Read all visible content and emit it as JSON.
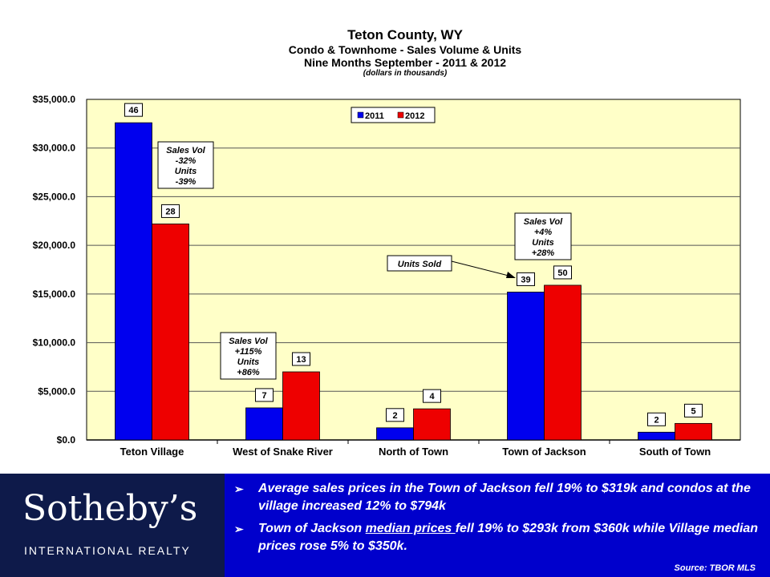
{
  "header": {
    "title": "Teton County, WY",
    "subtitle": "Condo & Townhome - Sales Volume & Units",
    "subtitle2": "Nine Months September  - 2011 & 2012",
    "note": "(dollars in thousands)"
  },
  "chart_data": {
    "type": "bar",
    "categories": [
      "Teton Village",
      "West of Snake River",
      "North of Town",
      "Town of Jackson",
      "South of Town"
    ],
    "series": [
      {
        "name": "2011",
        "color": "#0000ee",
        "values": [
          32600,
          3300,
          1250,
          15200,
          800
        ],
        "labels": [
          "46",
          "7",
          "2",
          "39",
          "2"
        ]
      },
      {
        "name": "2012",
        "color": "#ee0000",
        "values": [
          22200,
          7000,
          3200,
          15900,
          1700
        ],
        "labels": [
          "28",
          "13",
          "4",
          "50",
          "5"
        ]
      }
    ],
    "ylim": [
      0,
      35000
    ],
    "yticks": [
      "$0.0",
      "$5,000.0",
      "$10,000.0",
      "$15,000.0",
      "$20,000.0",
      "$25,000.0",
      "$30,000.0",
      "$35,000.0"
    ],
    "legend_position": "top-center",
    "grid": true,
    "plot_bg": "#ffffc8",
    "annotations": [
      {
        "category": "Teton Village",
        "lines": [
          "Sales Vol",
          "-32%",
          "Units",
          "-39%"
        ]
      },
      {
        "category": "West of Snake River",
        "lines": [
          "Sales Vol",
          "+115%",
          "Units",
          "+86%"
        ]
      },
      {
        "category": "Town of Jackson",
        "lines": [
          "Sales Vol",
          "+4%",
          "Units",
          "+28%"
        ]
      },
      {
        "category": "Town of Jackson",
        "lines": [
          "Units Sold"
        ],
        "arrow": true
      }
    ]
  },
  "footer": {
    "logo_main": "Sotheby’s",
    "logo_sub": "INTERNATIONAL REALTY",
    "bullet1": "Average sales prices in the Town of Jackson fell 19% to $319k and condos at the village increased 12% to $794k",
    "bullet2_pre": "Town of Jackson ",
    "bullet2_u": "median prices ",
    "bullet2_post": "fell 19%  to $293k from $360k while Village median prices rose 5% to $350k.",
    "source": "Source: TBOR MLS",
    "bullet_glyph": "➢"
  }
}
